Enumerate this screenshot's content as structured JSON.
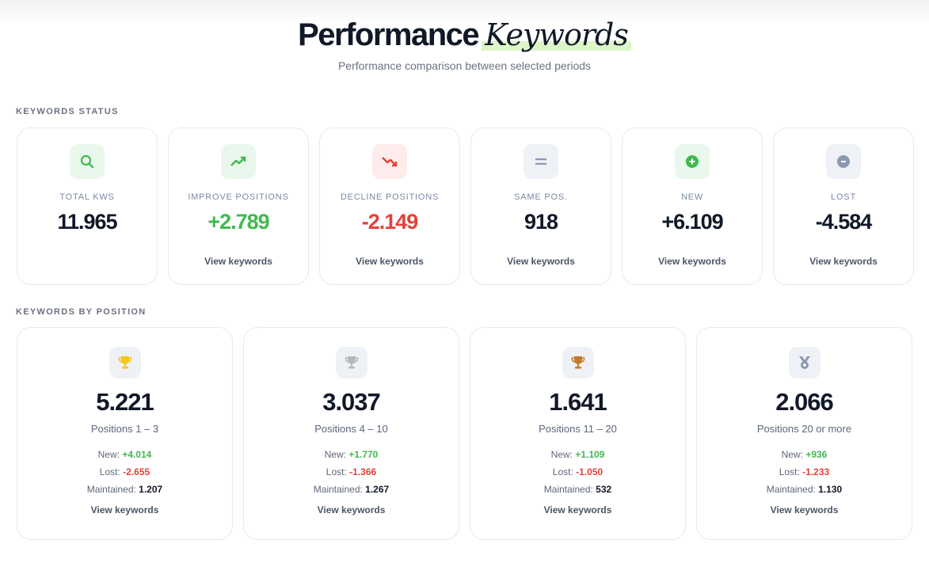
{
  "header": {
    "title_main": "Performance",
    "title_accent": "Keywords",
    "subtitle": "Performance comparison between selected periods"
  },
  "colors": {
    "green": "#41b94f",
    "red": "#e2423a",
    "dark": "#111827",
    "gold": "#f5c518",
    "silver": "#b8b8b8",
    "bronze": "#c47a2c",
    "muted": "#8c98b0"
  },
  "status": {
    "section_label": "KEYWORDS STATUS",
    "cards": [
      {
        "icon": "search-icon",
        "label": "TOTAL KWS",
        "value": "11.965"
      },
      {
        "icon": "trending-up-icon",
        "label": "IMPROVE POSITIONS",
        "value": "+2.789",
        "link": "View keywords"
      },
      {
        "icon": "trending-down-icon",
        "label": "DECLINE POSITIONS",
        "value": "-2.149",
        "link": "View keywords"
      },
      {
        "icon": "equals-icon",
        "label": "SAME POS.",
        "value": "918",
        "link": "View keywords"
      },
      {
        "icon": "plus-circle-icon",
        "label": "NEW",
        "value": "+6.109",
        "link": "View keywords"
      },
      {
        "icon": "minus-circle-icon",
        "label": "LOST",
        "value": "-4.584",
        "link": "View keywords"
      }
    ]
  },
  "positions": {
    "section_label": "KEYWORDS BY POSITION",
    "new_label": "New:",
    "lost_label": "Lost:",
    "maintained_label": "Maintained:",
    "cards": [
      {
        "icon": "gold-trophy-icon",
        "value": "5.221",
        "range": "Positions 1 – 3",
        "new": "+4.014",
        "lost": "-2.655",
        "maintained": "1.207",
        "link": "View keywords"
      },
      {
        "icon": "silver-trophy-icon",
        "value": "3.037",
        "range": "Positions 4 – 10",
        "new": "+1.770",
        "lost": "-1.366",
        "maintained": "1.267",
        "link": "View keywords"
      },
      {
        "icon": "bronze-trophy-icon",
        "value": "1.641",
        "range": "Positions 11 – 20",
        "new": "+1.109",
        "lost": "-1.050",
        "maintained": "532",
        "link": "View keywords"
      },
      {
        "icon": "medal-icon",
        "value": "2.066",
        "range": "Positions 20 or more",
        "new": "+936",
        "lost": "-1.233",
        "maintained": "1.130",
        "link": "View keywords"
      }
    ]
  }
}
